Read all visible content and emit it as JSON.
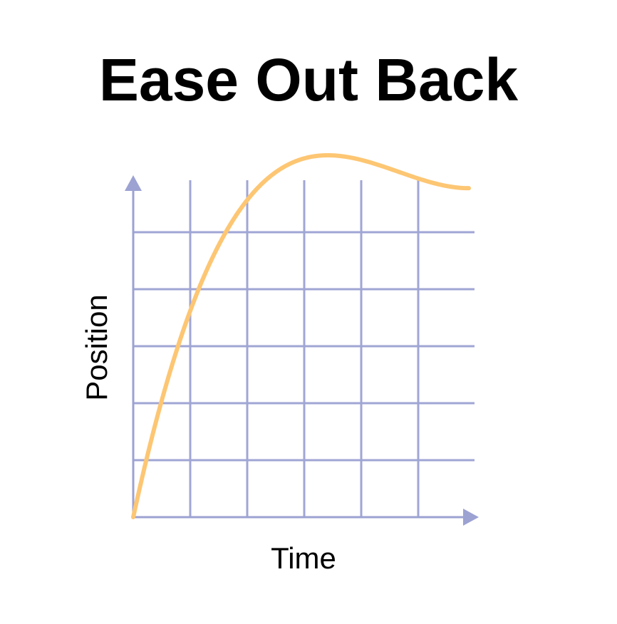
{
  "chart_data": {
    "type": "line",
    "title": "Ease Out Back",
    "xlabel": "Time",
    "ylabel": "Position",
    "xlim": [
      0,
      1
    ],
    "ylim": [
      0,
      1
    ],
    "grid": true,
    "x_gridlines": 6,
    "y_gridlines": 5,
    "series": [
      {
        "easing": "easeOutBack",
        "overshoot": 1.70158,
        "x_range": [
          0,
          1
        ]
      }
    ],
    "colors": {
      "curve": "#FDC673",
      "grid": "#A0A6D4",
      "axis": "#9CA2D2",
      "text": "#000000"
    }
  }
}
